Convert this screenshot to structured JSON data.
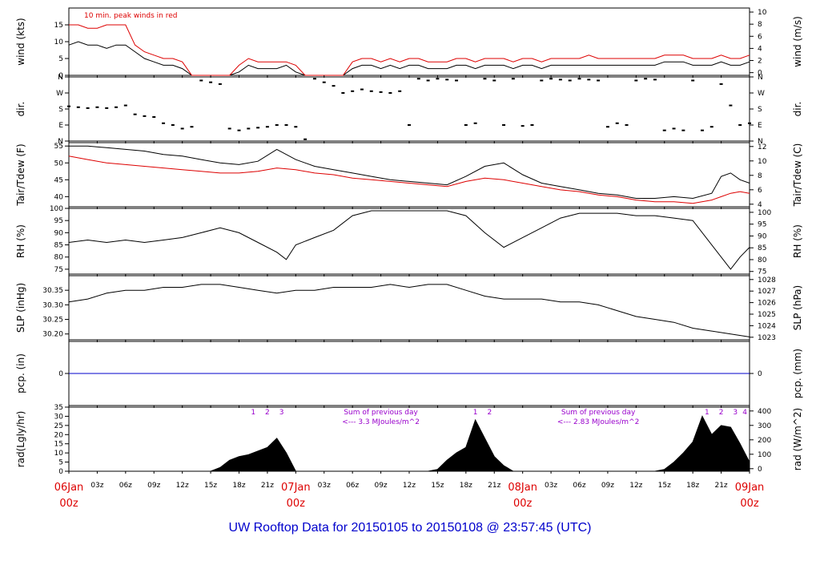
{
  "title": "UW Rooftop Data for 20150105  to  20150108 @ 23:57:45  (UTC)",
  "colors": {
    "black": "#000000",
    "red": "#dd0000",
    "blue": "#0000cc",
    "purple": "#9900cc",
    "footer": "#0000cc"
  },
  "time_axis": {
    "unit": "hours since 06Jan 00z",
    "range": [
      0,
      72
    ],
    "minor_ticks": [
      "03z",
      "06z",
      "09z",
      "12z",
      "15z",
      "18z",
      "21z"
    ],
    "major_ticks": [
      {
        "hour": 0,
        "day": "06Jan",
        "time": "00z"
      },
      {
        "hour": 24,
        "day": "07Jan",
        "time": "00z"
      },
      {
        "hour": 48,
        "day": "08Jan",
        "time": "00z"
      },
      {
        "hour": 72,
        "day": "09Jan",
        "time": "00z"
      }
    ]
  },
  "chart_data": [
    {
      "id": "wind",
      "type": "line",
      "ylabel": "wind (kts)",
      "ylabel_right": "wind (m/s)",
      "ylim": [
        0,
        20
      ],
      "yticks": [
        0,
        5,
        10,
        15
      ],
      "yticks_right": [
        0,
        2,
        4,
        6,
        8,
        10
      ],
      "annotation": "10 min. peak winds in red",
      "series": [
        {
          "color": "#000000",
          "x": [
            0,
            1,
            2,
            3,
            4,
            5,
            6,
            7,
            8,
            9,
            10,
            11,
            12,
            13,
            14,
            15,
            16,
            17,
            18,
            19,
            20,
            21,
            22,
            23,
            24,
            25,
            26,
            27,
            28,
            29,
            30,
            31,
            32,
            33,
            34,
            35,
            36,
            37,
            38,
            39,
            40,
            41,
            42,
            43,
            44,
            45,
            46,
            47,
            48,
            49,
            50,
            51,
            52,
            53,
            54,
            55,
            56,
            57,
            58,
            59,
            60,
            61,
            62,
            63,
            64,
            65,
            66,
            67,
            68,
            69,
            70,
            71,
            72
          ],
          "values": [
            9,
            10,
            9,
            9,
            8,
            9,
            9,
            7,
            5,
            4,
            3,
            3,
            2,
            0,
            0,
            0,
            0,
            0,
            1,
            3,
            2,
            2,
            2,
            3,
            1,
            0,
            0,
            0,
            0,
            0,
            2,
            3,
            3,
            2,
            3,
            2,
            3,
            3,
            2,
            2,
            2,
            3,
            3,
            2,
            3,
            3,
            3,
            2,
            3,
            3,
            2,
            3,
            3,
            3,
            3,
            3,
            3,
            3,
            3,
            3,
            3,
            3,
            3,
            4,
            4,
            4,
            3,
            3,
            3,
            4,
            3,
            3,
            4
          ]
        },
        {
          "color": "#dd0000",
          "x": [
            0,
            1,
            2,
            3,
            4,
            5,
            6,
            7,
            8,
            9,
            10,
            11,
            12,
            13,
            14,
            15,
            16,
            17,
            18,
            19,
            20,
            21,
            22,
            23,
            24,
            25,
            26,
            27,
            28,
            29,
            30,
            31,
            32,
            33,
            34,
            35,
            36,
            37,
            38,
            39,
            40,
            41,
            42,
            43,
            44,
            45,
            46,
            47,
            48,
            49,
            50,
            51,
            52,
            53,
            54,
            55,
            56,
            57,
            58,
            59,
            60,
            61,
            62,
            63,
            64,
            65,
            66,
            67,
            68,
            69,
            70,
            71,
            72
          ],
          "values": [
            15,
            15,
            14,
            14,
            15,
            15,
            15,
            9,
            7,
            6,
            5,
            5,
            4,
            0,
            0,
            0,
            0,
            0,
            3,
            5,
            4,
            4,
            4,
            4,
            3,
            0,
            0,
            0,
            0,
            0,
            4,
            5,
            5,
            4,
            5,
            4,
            5,
            5,
            4,
            4,
            4,
            5,
            5,
            4,
            5,
            5,
            5,
            4,
            5,
            5,
            4,
            5,
            5,
            5,
            5,
            6,
            5,
            5,
            5,
            5,
            5,
            5,
            5,
            6,
            6,
            6,
            5,
            5,
            5,
            6,
            5,
            5,
            6
          ]
        }
      ]
    },
    {
      "id": "dir",
      "type": "scatter",
      "ylabel": "dir.",
      "ylabel_right": "dir.",
      "ylim": [
        0,
        360
      ],
      "yticks": [
        0,
        90,
        180,
        270,
        360
      ],
      "ytick_labels": [
        "N",
        "E",
        "S",
        "W",
        "N"
      ],
      "series": [
        {
          "color": "#000000",
          "x": [
            0,
            1,
            2,
            3,
            4,
            5,
            6,
            7,
            8,
            9,
            10,
            11,
            12,
            13,
            14,
            15,
            16,
            17,
            18,
            19,
            20,
            21,
            22,
            23,
            24,
            25,
            26,
            27,
            28,
            29,
            30,
            31,
            32,
            33,
            34,
            35,
            36,
            37,
            38,
            39,
            40,
            41,
            42,
            43,
            44,
            45,
            46,
            47,
            48,
            49,
            50,
            51,
            52,
            53,
            54,
            55,
            56,
            57,
            58,
            59,
            60,
            61,
            62,
            63,
            64,
            65,
            66,
            67,
            68,
            69,
            70,
            71,
            72
          ],
          "values": [
            195,
            190,
            185,
            190,
            185,
            190,
            200,
            150,
            140,
            135,
            100,
            90,
            70,
            80,
            340,
            330,
            320,
            70,
            60,
            70,
            75,
            80,
            90,
            90,
            80,
            10,
            350,
            330,
            310,
            270,
            280,
            290,
            280,
            275,
            270,
            280,
            90,
            350,
            340,
            350,
            345,
            340,
            90,
            100,
            350,
            340,
            90,
            350,
            85,
            90,
            340,
            350,
            345,
            340,
            350,
            345,
            340,
            80,
            100,
            90,
            340,
            350,
            345,
            60,
            70,
            60,
            340,
            60,
            80,
            320,
            200,
            90,
            100
          ]
        }
      ]
    },
    {
      "id": "temp",
      "type": "line",
      "ylabel": "Tair/Tdew (F)",
      "ylabel_right": "Tair/Tdew (C)",
      "ylim": [
        37,
        56
      ],
      "yticks": [
        40,
        45,
        50,
        55
      ],
      "yticks_right": [
        4,
        6,
        8,
        10,
        12
      ],
      "series": [
        {
          "color": "#000000",
          "x": [
            0,
            2,
            4,
            6,
            8,
            10,
            12,
            14,
            16,
            18,
            20,
            22,
            24,
            26,
            28,
            30,
            32,
            34,
            36,
            38,
            40,
            42,
            44,
            46,
            48,
            50,
            52,
            54,
            56,
            58,
            60,
            62,
            64,
            66,
            68,
            69,
            70,
            71,
            72
          ],
          "values": [
            55,
            55,
            54.5,
            54,
            53.5,
            52.5,
            52,
            51,
            50,
            49.5,
            50.5,
            54,
            51,
            49,
            48,
            47,
            46,
            45,
            44.5,
            44,
            43.5,
            46,
            49,
            50,
            46.5,
            44,
            43,
            42,
            41,
            40.5,
            39.5,
            39.5,
            40,
            39.5,
            41,
            46,
            47,
            45,
            44
          ]
        },
        {
          "color": "#dd0000",
          "x": [
            0,
            2,
            4,
            6,
            8,
            10,
            12,
            14,
            16,
            18,
            20,
            22,
            24,
            26,
            28,
            30,
            32,
            34,
            36,
            38,
            40,
            42,
            44,
            46,
            48,
            50,
            52,
            54,
            56,
            58,
            60,
            62,
            64,
            66,
            68,
            69,
            70,
            71,
            72
          ],
          "values": [
            52,
            51,
            50,
            49.5,
            49,
            48.5,
            48,
            47.5,
            47,
            47,
            47.5,
            48.5,
            48,
            47,
            46.5,
            45.5,
            45,
            44.5,
            44,
            43.5,
            43,
            44.5,
            45.5,
            45,
            44,
            43,
            42,
            41.5,
            40.5,
            40,
            39,
            38.5,
            38.5,
            38,
            39,
            40,
            41,
            41.5,
            41
          ]
        }
      ]
    },
    {
      "id": "rh",
      "type": "line",
      "ylabel": "RH (%)",
      "ylabel_right": "RH (%)",
      "ylim": [
        73,
        100
      ],
      "yticks": [
        75,
        80,
        85,
        90,
        95,
        100
      ],
      "yticks_right": [
        75,
        80,
        85,
        90,
        95,
        100
      ],
      "series": [
        {
          "color": "#000000",
          "x": [
            0,
            2,
            4,
            6,
            8,
            10,
            12,
            14,
            16,
            18,
            20,
            22,
            23,
            24,
            26,
            28,
            30,
            32,
            34,
            36,
            38,
            40,
            42,
            44,
            46,
            48,
            50,
            52,
            54,
            56,
            58,
            60,
            62,
            64,
            66,
            68,
            70,
            71,
            72
          ],
          "values": [
            86,
            87,
            86,
            87,
            86,
            87,
            88,
            90,
            92,
            90,
            86,
            82,
            79,
            85,
            88,
            91,
            97,
            99,
            99,
            99,
            99,
            99,
            97,
            90,
            84,
            88,
            92,
            96,
            98,
            98,
            98,
            97,
            97,
            96,
            95,
            85,
            75,
            80,
            84
          ]
        }
      ]
    },
    {
      "id": "slp",
      "type": "line",
      "ylabel": "SLP (inHg)",
      "ylabel_right": "SLP (hPa)",
      "ylim": [
        30.18,
        30.4
      ],
      "yticks": [
        30.2,
        30.25,
        30.3,
        30.35
      ],
      "ytick_labels": [
        "30.20",
        "30.25",
        "30.30",
        "30.35"
      ],
      "yticks_right": [
        1023,
        1024,
        1025,
        1026,
        1027,
        1028
      ],
      "series": [
        {
          "color": "#000000",
          "x": [
            0,
            2,
            4,
            6,
            8,
            10,
            12,
            14,
            16,
            18,
            20,
            22,
            24,
            26,
            28,
            30,
            32,
            34,
            36,
            38,
            40,
            42,
            44,
            46,
            48,
            50,
            52,
            54,
            56,
            58,
            60,
            62,
            64,
            66,
            68,
            70,
            72
          ],
          "values": [
            30.31,
            30.32,
            30.34,
            30.35,
            30.35,
            30.36,
            30.36,
            30.37,
            30.37,
            30.36,
            30.35,
            30.34,
            30.35,
            30.35,
            30.36,
            30.36,
            30.36,
            30.37,
            30.36,
            30.37,
            30.37,
            30.35,
            30.33,
            30.32,
            30.32,
            30.32,
            30.31,
            30.31,
            30.3,
            30.28,
            30.26,
            30.25,
            30.24,
            30.22,
            30.21,
            30.2,
            30.19
          ]
        }
      ]
    },
    {
      "id": "pcp",
      "type": "line",
      "ylabel": "pcp. (in)",
      "ylabel_right": "pcp. (mm)",
      "ylim": [
        -1,
        1
      ],
      "yticks": [
        0
      ],
      "yticks_right": [
        0
      ],
      "series": [
        {
          "color": "#0000cc",
          "x": [
            0,
            72
          ],
          "values": [
            0,
            0
          ]
        }
      ]
    },
    {
      "id": "rad",
      "type": "area",
      "ylabel": "rad(Lgly/hr)",
      "ylabel_right": "rad (W/m^2)",
      "ylim": [
        0,
        35
      ],
      "yticks": [
        0,
        5,
        10,
        15,
        20,
        25,
        30,
        35
      ],
      "yticks_right": [
        0,
        100,
        200,
        300,
        400
      ],
      "series": [
        {
          "color": "#000000",
          "x": [
            0,
            1,
            14,
            15,
            16,
            17,
            18,
            19,
            20,
            21,
            22,
            23,
            24,
            38,
            39,
            40,
            41,
            42,
            43,
            44,
            45,
            46,
            47,
            62,
            63,
            64,
            65,
            66,
            67,
            68,
            69,
            70,
            71,
            72
          ],
          "values": [
            0,
            0,
            0,
            0,
            2,
            6,
            8,
            9,
            11,
            13,
            18,
            10,
            0,
            0,
            1,
            6,
            10,
            13,
            28,
            18,
            8,
            3,
            0,
            0,
            1,
            5,
            10,
            16,
            30,
            20,
            25,
            24,
            15,
            5
          ]
        }
      ],
      "markers": [
        {
          "hour": 19.5,
          "label": "1"
        },
        {
          "hour": 21.0,
          "label": "2"
        },
        {
          "hour": 22.5,
          "label": "3"
        },
        {
          "hour": 43.0,
          "label": "1"
        },
        {
          "hour": 44.5,
          "label": "2"
        },
        {
          "hour": 67.5,
          "label": "1"
        },
        {
          "hour": 69.0,
          "label": "2"
        },
        {
          "hour": 70.5,
          "label": "3"
        },
        {
          "hour": 71.5,
          "label": "4"
        }
      ],
      "notes": [
        {
          "hour": 33,
          "line1": "Sum of previous day",
          "line2": "<--- 3.3 MJoules/m^2"
        },
        {
          "hour": 56,
          "line1": "Sum of previous day",
          "line2": "<--- 2.83 MJoules/m^2"
        }
      ]
    }
  ]
}
